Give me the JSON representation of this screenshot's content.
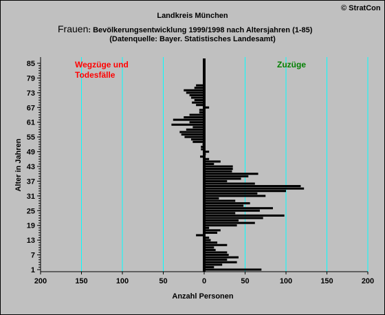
{
  "header": {
    "copyright": "© StratCon",
    "title_line1": "Landkreis München",
    "title_line2_big": "Frauen",
    "title_line2_rest": ": Bevölkerungsentwicklung 1999/1998  nach Altersjahren (1-85)",
    "title_line3": "(Datenquelle: Bayer. Statistisches Landesamt)"
  },
  "chart_data": {
    "type": "bar",
    "orientation": "horizontal",
    "title": "Landkreis München",
    "subtitle": "Frauen: Bevölkerungsentwicklung 1999/1998  nach Altersjahren (1-85) (Datenquelle: Bayer. Statistisches Landesamt)",
    "xlabel": "Anzahl Personen",
    "ylabel": "Alter in Jahren",
    "xlim": [
      -200,
      200
    ],
    "ylim": [
      1,
      85
    ],
    "x_ticks": [
      -200,
      -150,
      -100,
      -50,
      0,
      50,
      100,
      150,
      200
    ],
    "x_tick_labels": [
      "200",
      "150",
      "100",
      "50",
      "0",
      "50",
      "100",
      "150",
      "200"
    ],
    "y_ticks": [
      1,
      7,
      13,
      19,
      25,
      31,
      37,
      43,
      49,
      55,
      61,
      67,
      73,
      79,
      85
    ],
    "grid": {
      "vertical": true,
      "horizontal": false,
      "color": "#00ffff"
    },
    "annotations": [
      {
        "text": "Wegzüge und Todesfälle",
        "color": "#ff0000",
        "side": "left"
      },
      {
        "text": "Zuzüge",
        "color": "#008000",
        "side": "right"
      }
    ],
    "ages": [
      1,
      2,
      3,
      4,
      5,
      6,
      7,
      8,
      9,
      10,
      11,
      12,
      13,
      14,
      15,
      16,
      17,
      18,
      19,
      20,
      21,
      22,
      23,
      24,
      25,
      26,
      27,
      28,
      29,
      30,
      31,
      32,
      33,
      34,
      35,
      36,
      37,
      38,
      39,
      40,
      41,
      42,
      43,
      44,
      45,
      46,
      47,
      48,
      49,
      50,
      51,
      52,
      53,
      54,
      55,
      56,
      57,
      58,
      59,
      60,
      61,
      62,
      63,
      64,
      65,
      66,
      67,
      68,
      69,
      70,
      71,
      72,
      73,
      74,
      75,
      76,
      77,
      78,
      79,
      80,
      81,
      82,
      83,
      84,
      85
    ],
    "values": [
      70,
      12,
      22,
      40,
      28,
      42,
      30,
      28,
      14,
      12,
      28,
      16,
      8,
      6,
      -10,
      16,
      20,
      6,
      40,
      62,
      42,
      72,
      98,
      38,
      68,
      84,
      48,
      56,
      38,
      18,
      75,
      65,
      100,
      122,
      118,
      62,
      28,
      45,
      54,
      66,
      34,
      35,
      35,
      12,
      20,
      6,
      -5,
      2,
      6,
      -4,
      -4,
      -2,
      -14,
      -16,
      -24,
      -28,
      -30,
      -22,
      -14,
      -40,
      -18,
      -38,
      -25,
      -18,
      -6,
      -6,
      6,
      -10,
      -15,
      -12,
      -16,
      -18,
      -22,
      -25,
      -12,
      -10,
      0,
      0,
      0,
      0,
      0,
      0,
      0,
      0,
      0
    ],
    "bar_color": "#000000"
  }
}
